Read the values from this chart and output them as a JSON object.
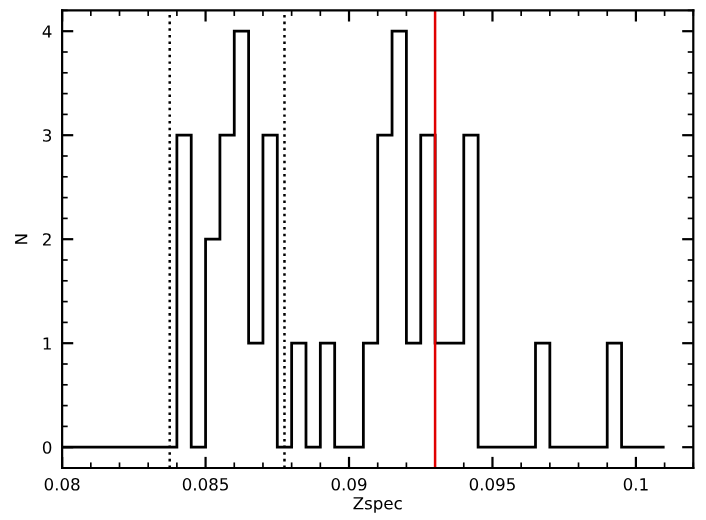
{
  "chart_data": {
    "type": "histogram",
    "xlabel": "Zspec",
    "ylabel": "N",
    "bins": [
      0.08,
      0.0805,
      0.081,
      0.0815,
      0.082,
      0.0825,
      0.083,
      0.0835,
      0.084,
      0.0845,
      0.085,
      0.0855,
      0.086,
      0.0865,
      0.087,
      0.0875,
      0.088,
      0.0885,
      0.089,
      0.0895,
      0.09,
      0.0905,
      0.091,
      0.0915,
      0.092,
      0.0925,
      0.093,
      0.0935,
      0.094,
      0.0945,
      0.095,
      0.0955,
      0.096,
      0.0965,
      0.097,
      0.0975,
      0.098,
      0.0985,
      0.099,
      0.0995,
      0.1,
      0.1005,
      0.101
    ],
    "values": [
      0,
      0,
      0,
      0,
      0,
      0,
      0,
      0,
      3,
      0,
      2,
      3,
      4,
      1,
      3,
      0,
      1,
      0,
      1,
      0,
      0,
      1,
      3,
      4,
      1,
      3,
      1,
      1,
      3,
      0,
      0,
      0,
      0,
      1,
      0,
      0,
      0,
      0,
      1,
      0,
      0,
      0
    ],
    "color": "#000000",
    "xlim": [
      0.08,
      0.102
    ],
    "xticks": [
      0.08,
      0.085,
      0.09,
      0.095,
      0.1
    ],
    "ylim": [
      -0.2,
      4.2
    ],
    "yticks": [
      0,
      1,
      2,
      3,
      4
    ],
    "grid": false,
    "legend": false,
    "ref_lines": [
      {
        "axis": "x",
        "value": 0.08375,
        "color": "#000000",
        "line_style": "dotted"
      },
      {
        "axis": "x",
        "value": 0.08775,
        "color": "#000000",
        "line_style": "dotted"
      },
      {
        "axis": "x",
        "value": 0.093,
        "color": "#e00000",
        "line_style": "solid"
      }
    ]
  }
}
